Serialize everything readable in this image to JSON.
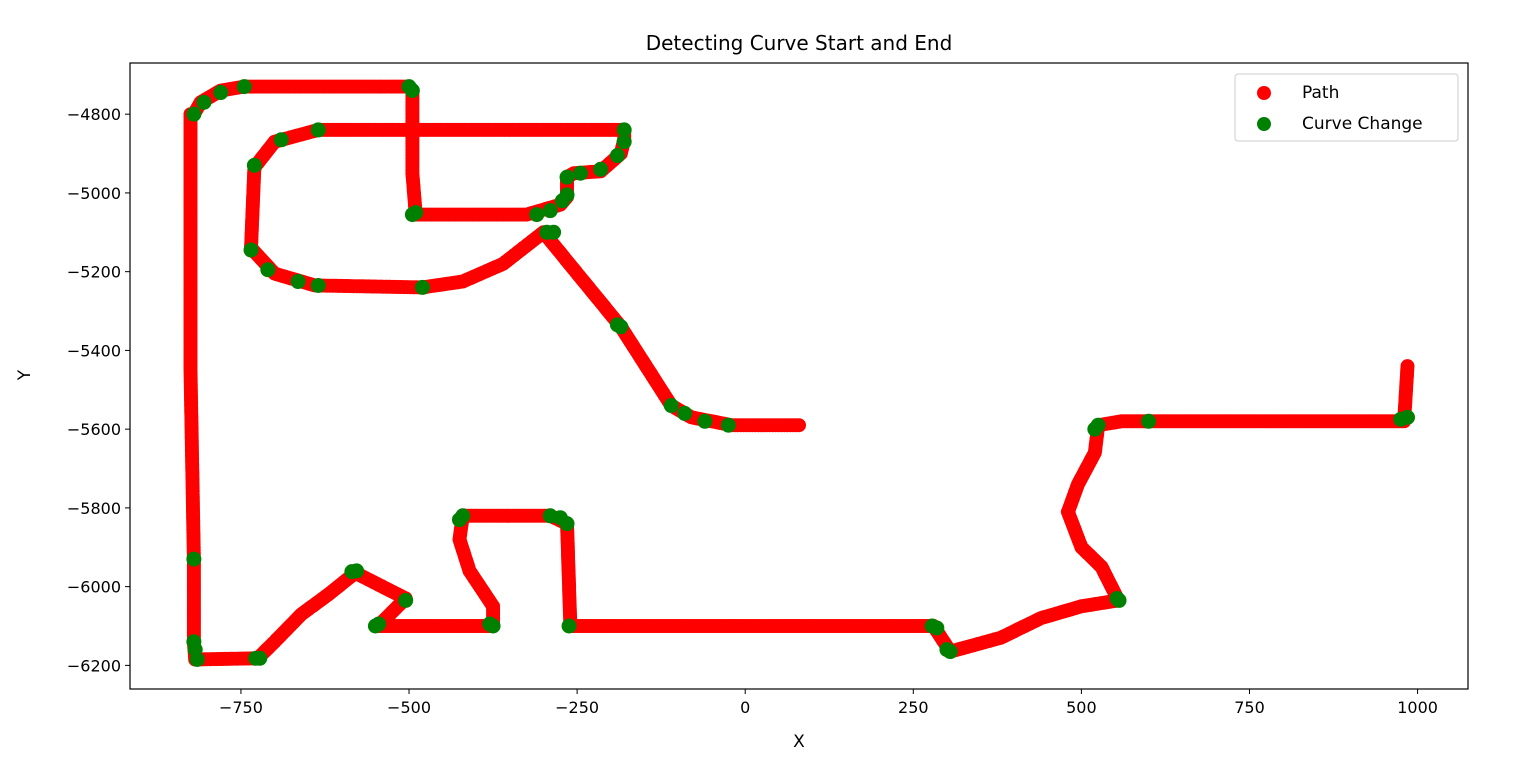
{
  "chart_data": {
    "type": "scatter",
    "title": "Detecting Curve Start and End",
    "xlabel": "X",
    "ylabel": "Y",
    "xlim": [
      -915,
      1075
    ],
    "ylim": [
      -6260,
      -4670
    ],
    "xticks": [
      -750,
      -500,
      -250,
      0,
      250,
      500,
      750,
      1000
    ],
    "yticks": [
      -4800,
      -5000,
      -5200,
      -5400,
      -5600,
      -5800,
      -6000,
      -6200
    ],
    "xtick_labels": [
      "−750",
      "−500",
      "−250",
      "0",
      "250",
      "500",
      "750",
      "1000"
    ],
    "ytick_labels": [
      "−4800",
      "−5000",
      "−5200",
      "−5400",
      "−5600",
      "−5800",
      "−6000",
      "−6200"
    ],
    "grid": false,
    "legend_position": "top-right",
    "series": [
      {
        "name": "Path",
        "color": "#ff0000",
        "segments": [
          [
            [
              -825,
              -4800
            ],
            [
              -825,
              -5450
            ],
            [
              -820,
              -5930
            ],
            [
              -820,
              -6140
            ],
            [
              -818,
              -6185
            ],
            [
              -725,
              -6182
            ],
            [
              -700,
              -6140
            ],
            [
              -660,
              -6070
            ],
            [
              -620,
              -6020
            ],
            [
              -580,
              -5965
            ],
            [
              -505,
              -6030
            ],
            [
              -540,
              -6090
            ],
            [
              -550,
              -6100
            ],
            [
              -375,
              -6100
            ],
            [
              -375,
              -6050
            ],
            [
              -410,
              -5960
            ],
            [
              -425,
              -5880
            ],
            [
              -420,
              -5820
            ],
            [
              -290,
              -5820
            ],
            [
              -265,
              -5840
            ],
            [
              -262,
              -6000
            ],
            [
              -260,
              -6100
            ],
            [
              280,
              -6100
            ],
            [
              305,
              -6165
            ],
            [
              380,
              -6130
            ],
            [
              440,
              -6080
            ],
            [
              500,
              -6050
            ],
            [
              555,
              -6035
            ],
            [
              530,
              -5950
            ],
            [
              500,
              -5900
            ],
            [
              480,
              -5810
            ],
            [
              495,
              -5740
            ],
            [
              520,
              -5660
            ],
            [
              525,
              -5590
            ],
            [
              560,
              -5580
            ],
            [
              980,
              -5580
            ],
            [
              985,
              -5440
            ]
          ],
          [
            [
              -820,
              -4800
            ],
            [
              -810,
              -4770
            ],
            [
              -780,
              -4740
            ],
            [
              -745,
              -4730
            ],
            [
              -500,
              -4730
            ],
            [
              -495,
              -4740
            ],
            [
              -495,
              -4950
            ],
            [
              -490,
              -5055
            ],
            [
              -325,
              -5055
            ],
            [
              -275,
              -5030
            ],
            [
              -265,
              -5010
            ],
            [
              -265,
              -4960
            ],
            [
              -255,
              -4950
            ],
            [
              -215,
              -4945
            ],
            [
              -185,
              -4900
            ],
            [
              -180,
              -4865
            ],
            [
              -180,
              -4840
            ],
            [
              -635,
              -4840
            ],
            [
              -700,
              -4870
            ],
            [
              -730,
              -4935
            ],
            [
              -735,
              -5140
            ],
            [
              -700,
              -5205
            ],
            [
              -640,
              -5235
            ],
            [
              -480,
              -5240
            ],
            [
              -420,
              -5225
            ],
            [
              -360,
              -5180
            ],
            [
              -300,
              -5100
            ],
            [
              -185,
              -5340
            ],
            [
              -110,
              -5540
            ],
            [
              -80,
              -5570
            ],
            [
              -20,
              -5590
            ],
            [
              80,
              -5590
            ]
          ]
        ]
      },
      {
        "name": "Curve Change",
        "color": "#008000",
        "points": [
          [
            -820,
            -4800
          ],
          [
            -805,
            -4770
          ],
          [
            -780,
            -4745
          ],
          [
            -745,
            -4730
          ],
          [
            -500,
            -4730
          ],
          [
            -495,
            -4740
          ],
          [
            -495,
            -5055
          ],
          [
            -490,
            -5050
          ],
          [
            -310,
            -5055
          ],
          [
            -290,
            -5045
          ],
          [
            -272,
            -5020
          ],
          [
            -265,
            -5005
          ],
          [
            -265,
            -4960
          ],
          [
            -245,
            -4950
          ],
          [
            -215,
            -4940
          ],
          [
            -190,
            -4905
          ],
          [
            -180,
            -4870
          ],
          [
            -180,
            -4840
          ],
          [
            -635,
            -4840
          ],
          [
            -690,
            -4865
          ],
          [
            -730,
            -4930
          ],
          [
            -735,
            -5145
          ],
          [
            -710,
            -5195
          ],
          [
            -665,
            -5225
          ],
          [
            -635,
            -5235
          ],
          [
            -480,
            -5240
          ],
          [
            -295,
            -5100
          ],
          [
            -285,
            -5100
          ],
          [
            -185,
            -5340
          ],
          [
            -190,
            -5335
          ],
          [
            -110,
            -5540
          ],
          [
            -90,
            -5560
          ],
          [
            -60,
            -5580
          ],
          [
            -25,
            -5590
          ],
          [
            -820,
            -5930
          ],
          [
            -820,
            -6140
          ],
          [
            -818,
            -6160
          ],
          [
            -815,
            -6185
          ],
          [
            -722,
            -6182
          ],
          [
            -728,
            -6182
          ],
          [
            -578,
            -5960
          ],
          [
            -585,
            -5962
          ],
          [
            -505,
            -6035
          ],
          [
            -545,
            -6095
          ],
          [
            -550,
            -6100
          ],
          [
            -375,
            -6100
          ],
          [
            -380,
            -6095
          ],
          [
            -420,
            -5820
          ],
          [
            -425,
            -5830
          ],
          [
            -290,
            -5820
          ],
          [
            -275,
            -5825
          ],
          [
            -265,
            -5840
          ],
          [
            -262,
            -6100
          ],
          [
            278,
            -6100
          ],
          [
            285,
            -6105
          ],
          [
            300,
            -6160
          ],
          [
            305,
            -6165
          ],
          [
            553,
            -6030
          ],
          [
            556,
            -6035
          ],
          [
            520,
            -5600
          ],
          [
            525,
            -5590
          ],
          [
            600,
            -5580
          ],
          [
            975,
            -5575
          ],
          [
            985,
            -5570
          ]
        ]
      }
    ]
  }
}
